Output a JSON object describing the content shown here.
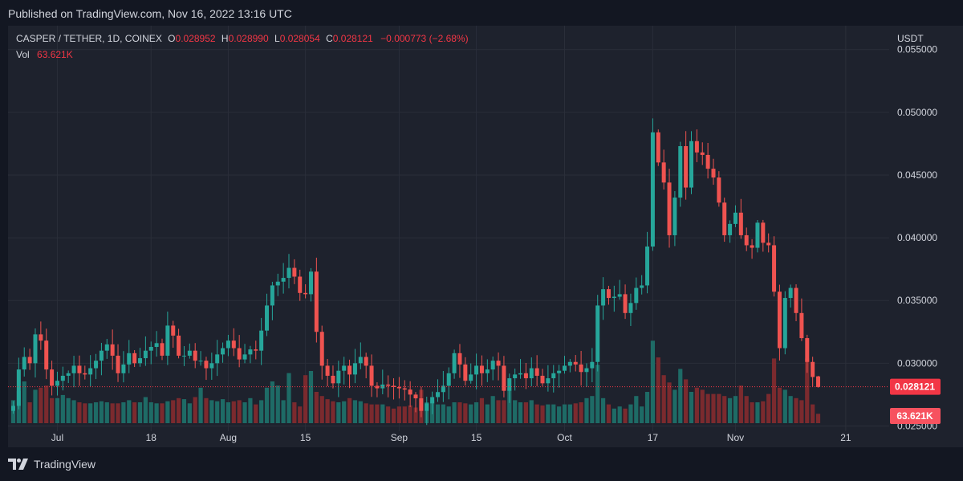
{
  "header": {
    "published": "Published on TradingView.com, Nov 16, 2022 13:16 UTC"
  },
  "legend": {
    "symbol": "CASPER / TETHER, 1D, COINEX",
    "o_label": "O",
    "o_value": "0.028952",
    "h_label": "H",
    "h_value": "0.028990",
    "l_label": "L",
    "l_value": "0.028054",
    "c_label": "C",
    "c_value": "0.028121",
    "change": "−0.000773 (−2.68%)",
    "vol_label": "Vol",
    "vol_value": "63.621K"
  },
  "footer": {
    "brand": "TradingView"
  },
  "colors": {
    "background": "#131722",
    "pane": "#1e222d",
    "up": "#26a69a",
    "down": "#ef5350",
    "up_volume": "#1e6b66",
    "down_volume": "#7b2a2e",
    "last_price": "#f23645"
  },
  "chart_data": {
    "type": "candlestick",
    "symbol": "CASPER / TETHER",
    "interval": "1D",
    "exchange": "COINEX",
    "currency_label": "USDT",
    "y_ticks": [
      "0.055000",
      "0.050000",
      "0.045000",
      "0.040000",
      "0.035000",
      "0.030000",
      "0.025000"
    ],
    "y_tick_values": [
      0.055,
      0.05,
      0.045,
      0.04,
      0.035,
      0.03,
      0.025
    ],
    "ylim": [
      0.0233,
      0.0569
    ],
    "x_ticks": [
      {
        "label": "Jul",
        "index": 8
      },
      {
        "label": "18",
        "index": 25
      },
      {
        "label": "Aug",
        "index": 39
      },
      {
        "label": "15",
        "index": 53
      },
      {
        "label": "Sep",
        "index": 70
      },
      {
        "label": "15",
        "index": 84
      },
      {
        "label": "Oct",
        "index": 100
      },
      {
        "label": "17",
        "index": 116
      },
      {
        "label": "Nov",
        "index": 131
      },
      {
        "label": "21",
        "index": 151
      }
    ],
    "last_price": 0.028121,
    "last_price_label": "0.028121",
    "last_volume_label": "63.621K",
    "closes": [
      0.0266,
      0.0295,
      0.0305,
      0.03,
      0.0323,
      0.0318,
      0.0295,
      0.0282,
      0.0286,
      0.029,
      0.0292,
      0.0298,
      0.0292,
      0.0291,
      0.0296,
      0.0302,
      0.031,
      0.0315,
      0.0306,
      0.0292,
      0.0299,
      0.0308,
      0.03,
      0.0304,
      0.031,
      0.0313,
      0.0316,
      0.0306,
      0.033,
      0.0322,
      0.0306,
      0.0306,
      0.031,
      0.0302,
      0.0302,
      0.0296,
      0.03,
      0.0307,
      0.0312,
      0.0318,
      0.0312,
      0.0303,
      0.0307,
      0.0311,
      0.031,
      0.0326,
      0.0346,
      0.0362,
      0.0365,
      0.0368,
      0.0376,
      0.0369,
      0.0356,
      0.0355,
      0.0373,
      0.0325,
      0.0298,
      0.029,
      0.0284,
      0.0294,
      0.0298,
      0.0291,
      0.03,
      0.0305,
      0.0298,
      0.0282,
      0.028,
      0.0283,
      0.0282,
      0.0281,
      0.028,
      0.0279,
      0.0275,
      0.0272,
      0.0262,
      0.0268,
      0.0273,
      0.0277,
      0.0282,
      0.0292,
      0.0308,
      0.0299,
      0.0286,
      0.0291,
      0.0298,
      0.0292,
      0.0295,
      0.0302,
      0.0298,
      0.0278,
      0.0288,
      0.0291,
      0.0292,
      0.0288,
      0.0296,
      0.029,
      0.0284,
      0.0288,
      0.0292,
      0.0294,
      0.0298,
      0.0301,
      0.0299,
      0.0293,
      0.0296,
      0.0301,
      0.0346,
      0.0359,
      0.0352,
      0.0353,
      0.0355,
      0.034,
      0.0348,
      0.036,
      0.0362,
      0.0393,
      0.0484,
      0.046,
      0.0444,
      0.0402,
      0.0432,
      0.0473,
      0.044,
      0.0477,
      0.0468,
      0.0466,
      0.0455,
      0.0448,
      0.0428,
      0.0402,
      0.0411,
      0.042,
      0.0402,
      0.0394,
      0.0392,
      0.0412,
      0.0396,
      0.0394,
      0.0357,
      0.0312,
      0.0352,
      0.036,
      0.034,
      0.032,
      0.0301,
      0.0289,
      0.0281
    ],
    "volumes": [
      2.2,
      3.1,
      4.0,
      2.0,
      3.2,
      3.4,
      3.6,
      2.4,
      2.4,
      2.7,
      2.4,
      2.2,
      2.0,
      1.9,
      1.9,
      2.0,
      2.1,
      2.0,
      1.9,
      1.9,
      2.0,
      2.2,
      2.0,
      2.0,
      2.5,
      2.0,
      1.9,
      1.9,
      2.1,
      2.2,
      2.4,
      2.3,
      1.9,
      2.5,
      3.4,
      2.4,
      2.2,
      2.1,
      2.3,
      2.0,
      2.1,
      2.2,
      2.0,
      2.4,
      1.8,
      2.2,
      3.4,
      4.0,
      3.6,
      2.2,
      4.8,
      2.0,
      1.6,
      4.6,
      5.0,
      3.0,
      2.6,
      2.3,
      2.1,
      2.0,
      2.1,
      2.4,
      2.2,
      2.1,
      1.9,
      1.8,
      1.8,
      1.8,
      1.6,
      1.4,
      1.6,
      1.6,
      1.7,
      1.5,
      3.2,
      2.0,
      2.2,
      1.8,
      1.8,
      1.6,
      2.0,
      2.0,
      1.9,
      1.8,
      2.0,
      2.4,
      1.8,
      2.6,
      2.2,
      2.2,
      3.4,
      2.2,
      2.0,
      2.0,
      2.2,
      1.8,
      1.7,
      1.8,
      1.8,
      1.6,
      1.8,
      1.8,
      1.9,
      2.0,
      2.4,
      2.6,
      5.6,
      2.4,
      1.8,
      1.4,
      1.6,
      1.4,
      1.8,
      2.6,
      1.6,
      3.0,
      7.9,
      6.3,
      4.6,
      3.9,
      3.2,
      5.2,
      4.2,
      3.0,
      3.4,
      3.2,
      2.8,
      2.8,
      2.8,
      2.6,
      2.4,
      2.6,
      3.6,
      2.6,
      2.0,
      2.0,
      2.1,
      2.8,
      6.2,
      3.4,
      3.2,
      2.6,
      2.4,
      2.2,
      6.2,
      1.8,
      0.9
    ]
  }
}
